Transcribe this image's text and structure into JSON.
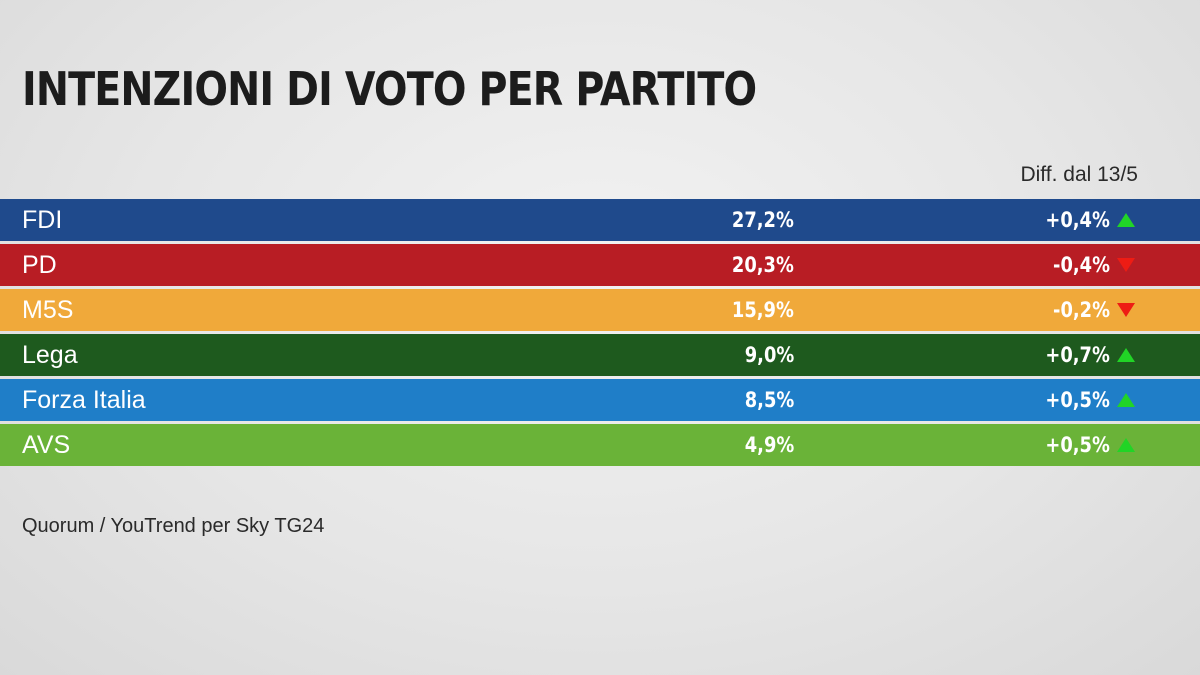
{
  "title": "INTENZIONI DI VOTO PER PARTITO",
  "diff_header": "Diff. dal 13/5",
  "source": "Quorum / YouTrend per Sky TG24",
  "colors": {
    "up_arrow": "#21d426",
    "down_arrow": "#ee1c14"
  },
  "chart_data": {
    "type": "table",
    "title": "INTENZIONI DI VOTO PER PARTITO",
    "columns": [
      "",
      "",
      "Diff. dal 13/5"
    ],
    "rows": [
      {
        "party": "FDI",
        "value_label": "27,2%",
        "value": 27.2,
        "diff_label": "+0,4%",
        "diff": 0.4,
        "trend": "up",
        "color": "#1f4a8c"
      },
      {
        "party": "PD",
        "value_label": "20,3%",
        "value": 20.3,
        "diff_label": "-0,4%",
        "diff": -0.4,
        "trend": "down",
        "color": "#b81d24"
      },
      {
        "party": "M5S",
        "value_label": "15,9%",
        "value": 15.9,
        "diff_label": "-0,2%",
        "diff": -0.2,
        "trend": "down",
        "color": "#f0a93a"
      },
      {
        "party": "Lega",
        "value_label": "9,0%",
        "value": 9.0,
        "diff_label": "+0,7%",
        "diff": 0.7,
        "trend": "up",
        "color": "#1e5a1e"
      },
      {
        "party": "Forza Italia",
        "value_label": "8,5%",
        "value": 8.5,
        "diff_label": "+0,5%",
        "diff": 0.5,
        "trend": "up",
        "color": "#1f7ec8"
      },
      {
        "party": "AVS",
        "value_label": "4,9%",
        "value": 4.9,
        "diff_label": "+0,5%",
        "diff": 0.5,
        "trend": "up",
        "color": "#6ab338"
      }
    ]
  }
}
